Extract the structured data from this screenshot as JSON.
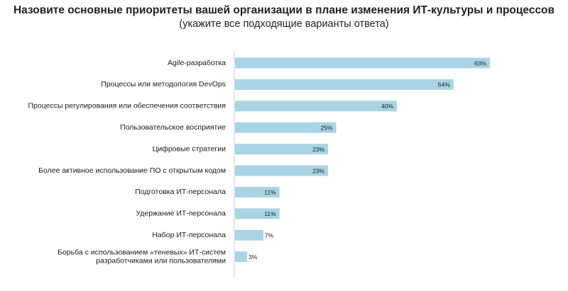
{
  "chart_data": {
    "type": "bar",
    "orientation": "horizontal",
    "title": "Назовите основные приоритеты вашей организации в плане изменения ИТ-культуры и процессов",
    "subtitle": "(укажите все подходящие варианты ответа)",
    "categories": [
      "Agile-разработка",
      "Процессы или методология DevOps",
      "Процессы регулирования или обеспечения соответствия",
      "Пользовательское восприятие",
      "Цифровые стратегии",
      "Более активное использование ПО с открытым кодом",
      "Подготовка ИТ-персонала",
      "Удержание ИТ-персонала",
      "Набор ИТ-персонала",
      [
        "Борьба с использованием «теневых» ИТ-систем",
        "разработчиками или пользователями"
      ]
    ],
    "values": [
      63,
      54,
      40,
      25,
      23,
      23,
      11,
      11,
      7,
      3
    ],
    "value_labels": [
      "63%",
      "54%",
      "40%",
      "25%",
      "23%",
      "23%",
      "11%",
      "11%",
      "7%",
      "3%"
    ],
    "xlim": [
      0,
      100
    ],
    "grid": false,
    "legend": "none",
    "colors": {
      "bar": "#a9d4e3",
      "axis": "#cfcfcf"
    }
  }
}
